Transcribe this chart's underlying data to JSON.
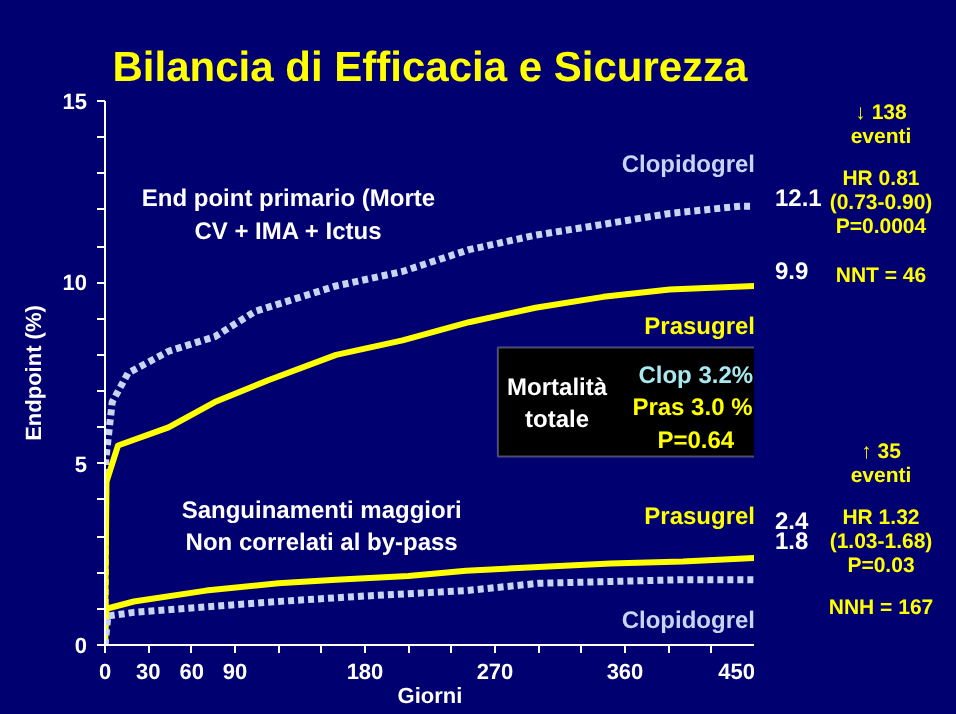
{
  "chart_data": {
    "type": "line",
    "title": "Bilancia di Efficacia e Sicurezza",
    "xlabel": "Giorni",
    "ylabel": "Endpoint (%)",
    "xlim": [
      0,
      450
    ],
    "ylim": [
      0,
      15
    ],
    "xticks": [
      0,
      30,
      60,
      90,
      {
        "value": 120,
        "label": null
      },
      {
        "value": 150,
        "label": null
      },
      180,
      {
        "value": 210,
        "label": null
      },
      {
        "value": 240,
        "label": null
      },
      270,
      {
        "value": 300,
        "label": null
      },
      {
        "value": 330,
        "label": null
      },
      360,
      {
        "value": 390,
        "label": null
      },
      {
        "value": 420,
        "label": null
      },
      450
    ],
    "yticks": [
      0,
      {
        "value": 1,
        "label": null
      },
      {
        "value": 2,
        "label": null
      },
      {
        "value": 3,
        "label": null
      },
      {
        "value": 4,
        "label": null
      },
      5,
      {
        "value": 6,
        "label": null
      },
      {
        "value": 7,
        "label": null
      },
      {
        "value": 8,
        "label": null
      },
      {
        "value": 9,
        "label": null
      },
      10,
      {
        "value": 11,
        "label": null
      },
      {
        "value": 12,
        "label": null
      },
      {
        "value": 13,
        "label": null
      },
      {
        "value": 14,
        "label": null
      },
      15
    ],
    "grid": false,
    "legend": false,
    "series": [
      {
        "name": "Clopidogrel",
        "color": "#c8d4f0",
        "line_style": "dotted",
        "x": [
          0,
          0.5,
          5,
          16,
          44,
          76,
          104,
          160,
          206,
          252,
          298,
          345,
          391,
          440,
          450
        ],
        "values": [
          0,
          5.1,
          6.7,
          7.5,
          8.1,
          8.5,
          9.2,
          9.9,
          10.3,
          10.9,
          11.3,
          11.6,
          11.9,
          12.1,
          12.1
        ],
        "value_labels": [
          null,
          null,
          null,
          null,
          null,
          null,
          null,
          null,
          null,
          null,
          null,
          null,
          null,
          null,
          "12.1"
        ]
      },
      {
        "name": "Prasugrel",
        "color": "#ffff00",
        "line_style": "solid",
        "x": [
          0,
          1,
          9,
          44,
          76,
          113,
          160,
          206,
          252,
          298,
          345,
          391,
          450
        ],
        "values": [
          0,
          4.5,
          5.5,
          6.0,
          6.7,
          7.3,
          8.0,
          8.4,
          8.9,
          9.3,
          9.6,
          9.8,
          9.9
        ],
        "value_labels": [
          null,
          null,
          null,
          null,
          null,
          null,
          null,
          null,
          null,
          null,
          null,
          null,
          "9.9"
        ]
      },
      {
        "name": "Prasugrel",
        "color": "#ffff00",
        "line_style": "solid",
        "x": [
          0,
          1,
          20,
          70,
          120,
          160,
          210,
          250,
          300,
          350,
          400,
          450
        ],
        "values": [
          0,
          1.0,
          1.2,
          1.5,
          1.7,
          1.8,
          1.9,
          2.05,
          2.15,
          2.25,
          2.3,
          2.4
        ],
        "value_labels": [
          null,
          null,
          null,
          null,
          null,
          null,
          null,
          null,
          null,
          null,
          null,
          "2.4"
        ]
      },
      {
        "name": "Clopidogrel",
        "color": "#c8d4f0",
        "line_style": "dotted",
        "x": [
          0,
          2,
          20,
          70,
          120,
          180,
          250,
          300,
          350,
          400,
          450
        ],
        "values": [
          0,
          0.8,
          0.9,
          1.05,
          1.2,
          1.35,
          1.5,
          1.7,
          1.75,
          1.8,
          1.8
        ],
        "value_labels": [
          null,
          null,
          null,
          null,
          null,
          null,
          null,
          null,
          null,
          null,
          "1.8"
        ]
      }
    ],
    "annotations": [
      "End point primario (Morte\nCV + IMA + Ictus",
      "Sanguinamenti maggiori\nNon correlati al by-pass",
      "Mortalità\ntotale",
      "Clop 3.2%",
      "Pras  3.0 %",
      "P=0.64",
      "↓ 138\neventi",
      "HR 0.81\n(0.73-0.90)\nP=0.0004",
      "NNT = 46",
      "↑ 35\neventi",
      "HR 1.32\n(1.03-1.68)\nP=0.03",
      "NNH = 167"
    ]
  }
}
